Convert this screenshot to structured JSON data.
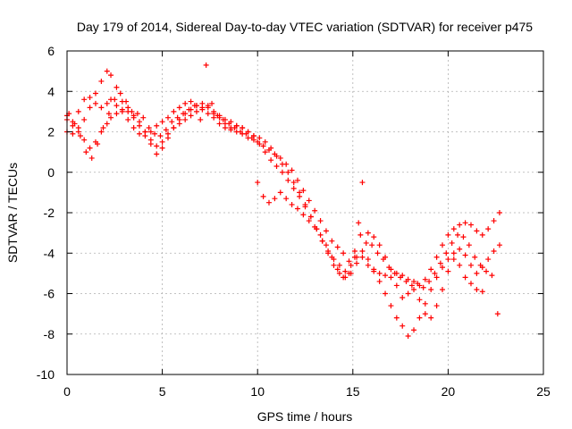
{
  "chart_data": {
    "type": "scatter",
    "title": "Day 179 of 2014, Sidereal Day-to-day VTEC variation (SDTVAR) for receiver p475",
    "xlabel": "GPS time / hours",
    "ylabel": "SDTVAR / TECUs",
    "xlim": [
      0,
      25
    ],
    "ylim": [
      -10,
      6
    ],
    "xticks": [
      "0",
      "5",
      "10",
      "15",
      "20",
      "25"
    ],
    "yticks": [
      "-10",
      "-8",
      "-6",
      "-4",
      "-2",
      "0",
      "2",
      "4",
      "6"
    ],
    "grid": true,
    "marker": "+",
    "color": "#ff0000",
    "series": [
      {
        "x": [
          0.0,
          0.3,
          0.6,
          0.9,
          1.2,
          1.5,
          1.8,
          2.1,
          2.3,
          2.6,
          2.9,
          3.2,
          3.5,
          3.8,
          4.1,
          4.4,
          4.7,
          5.0,
          5.3,
          5.6,
          5.9,
          6.2,
          6.5,
          6.8,
          7.1,
          7.4,
          7.7,
          8.0,
          8.3,
          8.6,
          8.9,
          9.2,
          9.5,
          9.8,
          10.1,
          10.4,
          10.7,
          11.0,
          11.3,
          11.6,
          11.9,
          12.2,
          12.5,
          12.8,
          13.1,
          13.4,
          13.7,
          14.0,
          14.3,
          14.6,
          14.9,
          15.2,
          15.5,
          15.8,
          16.1,
          16.4,
          16.7,
          17.0,
          17.3,
          17.6,
          17.9,
          18.2,
          18.5,
          18.8,
          19.1,
          19.4,
          19.7,
          20.0,
          20.3,
          20.6,
          20.9,
          21.2,
          21.5,
          21.8,
          22.1,
          22.4,
          22.7
        ],
        "y": [
          2.8,
          2.5,
          3.0,
          3.6,
          3.7,
          3.4,
          3.2,
          3.4,
          3.6,
          3.3,
          3.0,
          2.6,
          2.2,
          1.9,
          1.8,
          2.0,
          2.3,
          2.5,
          2.7,
          3.0,
          3.2,
          3.4,
          3.5,
          3.3,
          3.2,
          3.3,
          3.0,
          2.8,
          2.6,
          2.5,
          2.3,
          2.2,
          2.0,
          1.8,
          1.7,
          1.5,
          1.2,
          0.8,
          0.4,
          0.0,
          -0.5,
          -1.0,
          -1.6,
          -2.2,
          -2.8,
          -3.4,
          -4.0,
          -4.6,
          -5.0,
          -5.2,
          -5.0,
          -4.5,
          -4.2,
          -4.6,
          -4.9,
          -5.0,
          -5.1,
          -5.2,
          -5.0,
          -5.1,
          -5.3,
          -5.4,
          -5.6,
          -5.3,
          -4.8,
          -4.2,
          -3.6,
          -3.1,
          -2.8,
          -2.6,
          -2.5,
          -2.6,
          -2.9,
          -3.1,
          -2.8,
          -2.4,
          -2.0
        ]
      },
      {
        "x": [
          0.0,
          0.3,
          0.6,
          0.9,
          1.2,
          1.5,
          1.8,
          2.1,
          2.3,
          2.6,
          2.9,
          3.2,
          3.5,
          3.8,
          4.1,
          4.4,
          4.7,
          5.0,
          5.3,
          5.6,
          5.9,
          6.2,
          6.5,
          6.8,
          7.1,
          7.4,
          7.7,
          8.0,
          8.3,
          8.6,
          8.9,
          9.2,
          9.5,
          9.8,
          10.1,
          10.4,
          10.7,
          11.0,
          11.3,
          11.6,
          11.9,
          12.2,
          12.5,
          12.8,
          13.1,
          13.4,
          13.7,
          14.0,
          14.3,
          14.6,
          14.9,
          15.2,
          15.5,
          15.8,
          16.1,
          16.4,
          16.7,
          17.0,
          17.3,
          17.6,
          17.9,
          18.2,
          18.5,
          18.8,
          19.1,
          19.4,
          19.7,
          20.0,
          20.3,
          20.6,
          20.9,
          21.2,
          21.5,
          21.8,
          22.1,
          22.4,
          22.7
        ],
        "y": [
          2.0,
          1.9,
          2.2,
          2.6,
          3.2,
          3.9,
          4.5,
          5.0,
          4.8,
          4.2,
          3.5,
          3.2,
          2.8,
          2.3,
          2.0,
          1.4,
          0.9,
          1.2,
          1.7,
          2.2,
          2.6,
          2.9,
          3.1,
          3.3,
          3.4,
          3.2,
          2.9,
          2.7,
          2.4,
          2.2,
          2.0,
          1.9,
          1.7,
          1.6,
          1.4,
          1.0,
          0.6,
          0.3,
          0.0,
          -0.4,
          -0.8,
          -1.2,
          -1.7,
          -2.2,
          -2.8,
          -3.4,
          -3.9,
          -4.3,
          -4.6,
          -4.9,
          -4.6,
          -4.2,
          -3.9,
          -4.3,
          -4.8,
          -5.4,
          -6.0,
          -6.6,
          -7.2,
          -7.6,
          -8.1,
          -7.8,
          -7.2,
          -6.5,
          -5.8,
          -5.2,
          -4.7,
          -4.3,
          -4.0,
          -3.8,
          -4.1,
          -4.6,
          -5.0,
          -4.7,
          -4.3,
          -3.9,
          -3.6
        ]
      },
      {
        "x": [
          0.0,
          0.3,
          0.6,
          0.9,
          1.2,
          1.5,
          1.8,
          2.1,
          2.3,
          2.6,
          2.9,
          3.2,
          3.5,
          3.8,
          4.1,
          4.4,
          4.7,
          5.0,
          5.3,
          5.6,
          5.9,
          6.2,
          6.5,
          6.8,
          7.1,
          7.4,
          7.7,
          8.0,
          8.3,
          8.6,
          8.9,
          9.2,
          9.5,
          9.8,
          10.0,
          10.3,
          10.6,
          10.9,
          11.2,
          11.5,
          11.8,
          12.1,
          12.4,
          12.7,
          13.0,
          13.3,
          13.6,
          13.9,
          14.2,
          14.5,
          14.8,
          15.1,
          15.3,
          15.5,
          15.8,
          16.1,
          16.4,
          16.7,
          17.0,
          17.3,
          17.6,
          17.9,
          18.2,
          18.5,
          18.8,
          19.1,
          19.4,
          19.7,
          20.0,
          20.3,
          20.6,
          20.9,
          21.2,
          21.5,
          21.8
        ],
        "y": [
          2.6,
          2.3,
          2.0,
          1.6,
          1.2,
          1.5,
          2.0,
          2.4,
          2.7,
          2.9,
          3.1,
          3.0,
          2.7,
          2.5,
          2.0,
          1.6,
          1.3,
          1.5,
          1.9,
          2.2,
          2.4,
          2.6,
          2.8,
          3.0,
          3.1,
          2.9,
          2.7,
          2.4,
          2.2,
          2.1,
          2.3,
          2.2,
          2.0,
          1.8,
          -0.5,
          -1.2,
          -1.5,
          -1.3,
          -1.0,
          -1.3,
          -1.6,
          -1.8,
          -2.1,
          -2.4,
          -2.7,
          -3.1,
          -3.6,
          -4.2,
          -4.8,
          -5.2,
          -5.0,
          -4.2,
          -2.5,
          -0.5,
          -3.0,
          -3.2,
          -3.6,
          -4.2,
          -4.8,
          -5.6,
          -6.2,
          -6.0,
          -5.8,
          -6.3,
          -7.0,
          -7.2,
          -6.6,
          -5.8,
          -4.9,
          -4.3,
          -4.6,
          -5.2,
          -5.5,
          -5.8,
          -5.9
        ]
      },
      {
        "x": [
          0.1,
          0.4,
          0.7,
          1.0,
          1.3,
          1.6,
          1.9,
          2.2,
          2.5,
          2.8,
          3.1,
          3.4,
          3.7,
          4.0,
          4.3,
          4.6,
          4.9,
          5.2,
          5.5,
          5.8,
          6.1,
          6.4,
          6.7,
          7.0,
          7.3,
          7.6,
          7.9,
          8.2,
          8.5,
          8.8,
          9.1,
          9.4,
          9.7,
          10.0,
          10.3,
          10.6,
          10.9,
          11.2,
          11.5,
          11.8,
          12.1,
          12.4,
          12.7,
          13.0,
          13.3,
          13.6,
          13.9,
          14.2,
          14.5,
          14.8,
          15.1,
          15.4,
          15.7,
          16.0,
          16.3,
          16.6,
          16.9,
          17.2,
          17.5,
          17.8,
          18.1,
          18.4,
          18.7,
          19.0,
          19.3,
          19.6,
          19.9,
          20.2,
          20.5,
          20.8,
          21.1,
          21.4,
          21.7,
          22.0,
          22.3,
          22.6
        ],
        "y": [
          2.9,
          2.4,
          1.8,
          1.0,
          0.7,
          1.4,
          2.2,
          2.9,
          3.6,
          3.9,
          3.5,
          3.0,
          2.9,
          2.7,
          2.2,
          1.9,
          1.8,
          2.1,
          2.5,
          2.7,
          2.9,
          3.1,
          3.3,
          2.6,
          5.3,
          3.4,
          2.8,
          2.6,
          2.4,
          2.2,
          2.0,
          1.9,
          1.7,
          1.5,
          1.3,
          1.1,
          0.9,
          0.7,
          0.4,
          0.1,
          -0.4,
          -0.9,
          -1.4,
          -1.9,
          -2.4,
          -2.9,
          -3.4,
          -3.7,
          -4.0,
          -4.4,
          -3.9,
          -3.1,
          -3.5,
          -3.6,
          -4.0,
          -4.3,
          -4.7,
          -5.0,
          -5.2,
          -5.4,
          -5.6,
          -5.5,
          -5.7,
          -5.4,
          -5.0,
          -4.5,
          -4.0,
          -3.5,
          -3.1,
          -3.2,
          -3.6,
          -4.2,
          -4.6,
          -4.9,
          -5.1,
          -7.0
        ]
      }
    ]
  }
}
